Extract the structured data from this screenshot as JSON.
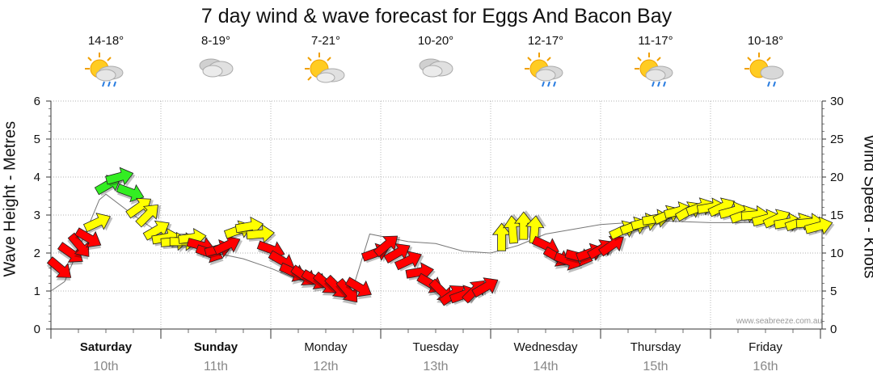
{
  "title": "7 day wind & wave forecast for Eggs And Bacon Bay",
  "left_axis_title": "Wave Height - Metres",
  "right_axis_title": "Wind Speed - Knots",
  "credit": "www.seabreeze.com.au",
  "colors": {
    "red": "#ff0000",
    "yellow": "#ffff00",
    "green": "#33ee22",
    "grid": "#999999"
  },
  "days": [
    {
      "name": "Saturday",
      "date": "10th",
      "temp": "14-18°",
      "icon": "sun-rain-cloud-icon",
      "bold": true
    },
    {
      "name": "Sunday",
      "date": "11th",
      "temp": "8-19°",
      "icon": "cloud-icon",
      "bold": true
    },
    {
      "name": "Monday",
      "date": "12th",
      "temp": "7-21°",
      "icon": "sun-cloud-icon",
      "bold": false
    },
    {
      "name": "Tuesday",
      "date": "13th",
      "temp": "10-20°",
      "icon": "cloud-icon",
      "bold": false
    },
    {
      "name": "Wednesday",
      "date": "14th",
      "temp": "12-17°",
      "icon": "sun-rain-cloud-icon",
      "bold": false
    },
    {
      "name": "Thursday",
      "date": "15th",
      "temp": "11-17°",
      "icon": "sun-rain-cloud-icon",
      "bold": false
    },
    {
      "name": "Friday",
      "date": "16th",
      "temp": "10-18°",
      "icon": "sun-shower-cloud-icon",
      "bold": false
    }
  ],
  "chart_data": {
    "type": "line",
    "title": "7 day wind & wave forecast for Eggs And Bacon Bay",
    "x_unit": "days from start of Saturday 10th",
    "left_axis": {
      "label": "Wave Height - Metres",
      "range": [
        0,
        6
      ],
      "ticks": [
        0,
        1,
        2,
        3,
        4,
        5,
        6
      ]
    },
    "right_axis": {
      "label": "Wind Speed - Knots",
      "range": [
        0,
        30
      ],
      "ticks": [
        0,
        5,
        10,
        15,
        20,
        25,
        30
      ]
    },
    "grid": true,
    "wave_series": {
      "name": "Wave Height - Metres",
      "points": [
        [
          0,
          1.0
        ],
        [
          0.125,
          1.25
        ],
        [
          0.25,
          2.1
        ],
        [
          0.375,
          2.95
        ],
        [
          0.44,
          3.4
        ],
        [
          0.5,
          3.55
        ],
        [
          0.75,
          3.0
        ],
        [
          1.0,
          2.5
        ],
        [
          1.25,
          2.5
        ],
        [
          1.5,
          2.0
        ],
        [
          1.75,
          1.85
        ],
        [
          2.0,
          1.6
        ],
        [
          2.25,
          1.3
        ],
        [
          2.5,
          1.2
        ],
        [
          2.75,
          1.1
        ],
        [
          2.9,
          2.5
        ],
        [
          3.25,
          2.3
        ],
        [
          3.5,
          2.25
        ],
        [
          3.75,
          2.05
        ],
        [
          4.0,
          2.0
        ],
        [
          4.25,
          2.2
        ],
        [
          4.5,
          2.5
        ],
        [
          5.0,
          2.75
        ],
        [
          5.5,
          2.85
        ],
        [
          6.0,
          2.8
        ],
        [
          6.5,
          2.8
        ],
        [
          6.9,
          2.85
        ]
      ]
    },
    "wind_arrows": [
      {
        "x": 0.08,
        "speed": 8,
        "color": "red"
      },
      {
        "x": 0.18,
        "speed": 10,
        "color": "red"
      },
      {
        "x": 0.26,
        "speed": 11,
        "color": "red"
      },
      {
        "x": 0.34,
        "speed": 12,
        "color": "red"
      },
      {
        "x": 0.42,
        "speed": 14,
        "color": "yellow"
      },
      {
        "x": 0.52,
        "speed": 19,
        "color": "green"
      },
      {
        "x": 0.62,
        "speed": 20,
        "color": "green"
      },
      {
        "x": 0.72,
        "speed": 18,
        "color": "green"
      },
      {
        "x": 0.8,
        "speed": 16,
        "color": "yellow"
      },
      {
        "x": 0.88,
        "speed": 15,
        "color": "yellow"
      },
      {
        "x": 0.96,
        "speed": 13,
        "color": "yellow"
      },
      {
        "x": 1.04,
        "speed": 12,
        "color": "yellow"
      },
      {
        "x": 1.12,
        "speed": 11.5,
        "color": "yellow"
      },
      {
        "x": 1.2,
        "speed": 11.5,
        "color": "yellow"
      },
      {
        "x": 1.28,
        "speed": 12,
        "color": "yellow"
      },
      {
        "x": 1.36,
        "speed": 11,
        "color": "red"
      },
      {
        "x": 1.44,
        "speed": 10,
        "color": "red"
      },
      {
        "x": 1.52,
        "speed": 10.5,
        "color": "red"
      },
      {
        "x": 1.6,
        "speed": 11,
        "color": "red"
      },
      {
        "x": 1.7,
        "speed": 13,
        "color": "yellow"
      },
      {
        "x": 1.8,
        "speed": 13.5,
        "color": "yellow"
      },
      {
        "x": 1.9,
        "speed": 12.5,
        "color": "yellow"
      },
      {
        "x": 2.0,
        "speed": 10.5,
        "color": "red"
      },
      {
        "x": 2.1,
        "speed": 9,
        "color": "red"
      },
      {
        "x": 2.2,
        "speed": 7.5,
        "color": "red"
      },
      {
        "x": 2.3,
        "speed": 7,
        "color": "red"
      },
      {
        "x": 2.4,
        "speed": 6.5,
        "color": "red"
      },
      {
        "x": 2.5,
        "speed": 6,
        "color": "red"
      },
      {
        "x": 2.6,
        "speed": 5.5,
        "color": "red"
      },
      {
        "x": 2.7,
        "speed": 5,
        "color": "red"
      },
      {
        "x": 2.8,
        "speed": 5.5,
        "color": "red"
      },
      {
        "x": 2.95,
        "speed": 10,
        "color": "red"
      },
      {
        "x": 3.05,
        "speed": 11,
        "color": "red"
      },
      {
        "x": 3.15,
        "speed": 10,
        "color": "red"
      },
      {
        "x": 3.25,
        "speed": 9,
        "color": "red"
      },
      {
        "x": 3.35,
        "speed": 7.5,
        "color": "red"
      },
      {
        "x": 3.45,
        "speed": 6,
        "color": "red"
      },
      {
        "x": 3.55,
        "speed": 5,
        "color": "red"
      },
      {
        "x": 3.65,
        "speed": 4.5,
        "color": "red"
      },
      {
        "x": 3.75,
        "speed": 4.5,
        "color": "red"
      },
      {
        "x": 3.85,
        "speed": 5,
        "color": "red"
      },
      {
        "x": 3.95,
        "speed": 5.5,
        "color": "red"
      },
      {
        "x": 4.1,
        "speed": 12,
        "color": "yellow"
      },
      {
        "x": 4.2,
        "speed": 13,
        "color": "yellow"
      },
      {
        "x": 4.3,
        "speed": 13.5,
        "color": "yellow"
      },
      {
        "x": 4.4,
        "speed": 13,
        "color": "yellow"
      },
      {
        "x": 4.5,
        "speed": 11,
        "color": "red"
      },
      {
        "x": 4.6,
        "speed": 9.5,
        "color": "red"
      },
      {
        "x": 4.7,
        "speed": 9,
        "color": "red"
      },
      {
        "x": 4.8,
        "speed": 9.5,
        "color": "red"
      },
      {
        "x": 4.9,
        "speed": 10,
        "color": "red"
      },
      {
        "x": 5.0,
        "speed": 10.5,
        "color": "red"
      },
      {
        "x": 5.1,
        "speed": 11,
        "color": "red"
      },
      {
        "x": 5.2,
        "speed": 13,
        "color": "yellow"
      },
      {
        "x": 5.3,
        "speed": 13.5,
        "color": "yellow"
      },
      {
        "x": 5.4,
        "speed": 14,
        "color": "yellow"
      },
      {
        "x": 5.5,
        "speed": 14.5,
        "color": "yellow"
      },
      {
        "x": 5.6,
        "speed": 15,
        "color": "yellow"
      },
      {
        "x": 5.7,
        "speed": 15.5,
        "color": "yellow"
      },
      {
        "x": 5.8,
        "speed": 15.5,
        "color": "yellow"
      },
      {
        "x": 5.9,
        "speed": 16,
        "color": "yellow"
      },
      {
        "x": 6.0,
        "speed": 16,
        "color": "yellow"
      },
      {
        "x": 6.1,
        "speed": 16,
        "color": "yellow"
      },
      {
        "x": 6.2,
        "speed": 15.5,
        "color": "yellow"
      },
      {
        "x": 6.3,
        "speed": 15,
        "color": "yellow"
      },
      {
        "x": 6.4,
        "speed": 15,
        "color": "yellow"
      },
      {
        "x": 6.5,
        "speed": 14.5,
        "color": "yellow"
      },
      {
        "x": 6.6,
        "speed": 14.5,
        "color": "yellow"
      },
      {
        "x": 6.7,
        "speed": 14,
        "color": "yellow"
      },
      {
        "x": 6.8,
        "speed": 14,
        "color": "yellow"
      },
      {
        "x": 6.9,
        "speed": 14,
        "color": "yellow"
      },
      {
        "x": 6.98,
        "speed": 13.5,
        "color": "yellow"
      }
    ]
  }
}
